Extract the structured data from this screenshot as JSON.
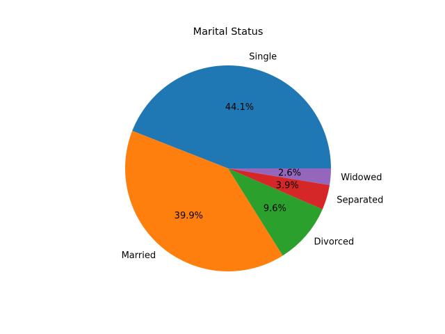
{
  "chart_data": {
    "type": "pie",
    "title": "Marital Status",
    "start_angle_deg": 0,
    "direction": "counterclockwise",
    "slices": [
      {
        "label": "Single",
        "value": 44.1,
        "pct_label": "44.1%",
        "color": "#1f77b4"
      },
      {
        "label": "Married",
        "value": 39.9,
        "pct_label": "39.9%",
        "color": "#ff7f0e"
      },
      {
        "label": "Divorced",
        "value": 9.6,
        "pct_label": "9.6%",
        "color": "#2ca02c"
      },
      {
        "label": "Separated",
        "value": 3.9,
        "pct_label": "3.9%",
        "color": "#d62728"
      },
      {
        "label": "Widowed",
        "value": 2.6,
        "pct_label": "2.6%",
        "color": "#9467bd"
      }
    ]
  }
}
